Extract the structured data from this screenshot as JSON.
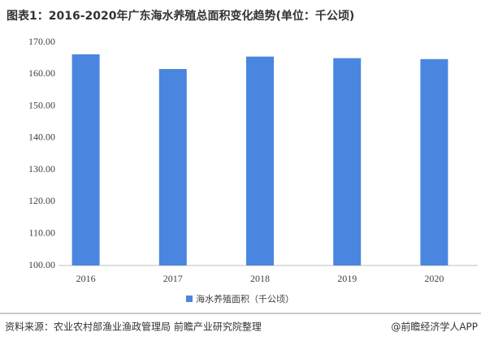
{
  "chart_data": {
    "type": "bar",
    "title": "图表1：2016-2020年广东海水养殖总面积变化趋势(单位：千公顷)",
    "categories": [
      "2016",
      "2017",
      "2018",
      "2019",
      "2020"
    ],
    "series": [
      {
        "name": "海水养殖面积（千公顷）",
        "color": "#4a86e0",
        "values": [
          166.2,
          161.6,
          165.5,
          165.0,
          164.7
        ]
      }
    ],
    "ylim": [
      100,
      170
    ],
    "yticks": [
      {
        "value": 100,
        "label": "100.00"
      },
      {
        "value": 110,
        "label": "110.00"
      },
      {
        "value": 120,
        "label": "120.00"
      },
      {
        "value": 130,
        "label": "130.00"
      },
      {
        "value": 140,
        "label": "140.00"
      },
      {
        "value": 150,
        "label": "150.00"
      },
      {
        "value": 160,
        "label": "160.00"
      },
      {
        "value": 170,
        "label": "170.00"
      }
    ],
    "grid": false,
    "source": "资料来源：农业农村部渔业渔政管理局 前瞻产业研究院整理",
    "brand": "@前瞻经济学人APP"
  }
}
